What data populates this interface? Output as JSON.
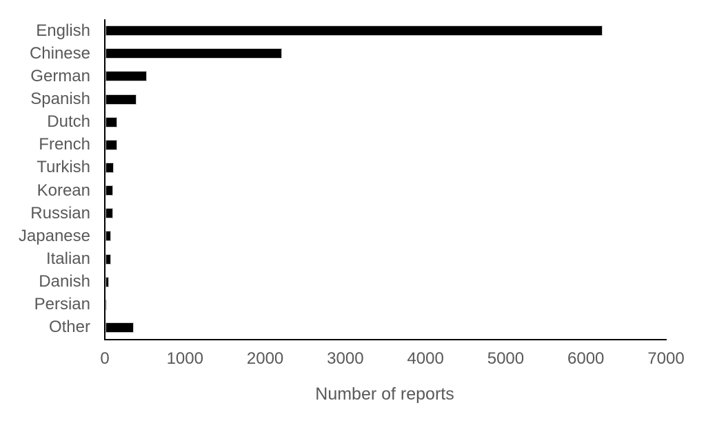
{
  "chart_data": {
    "type": "bar",
    "orientation": "horizontal",
    "title": "",
    "xlabel": "Number of reports",
    "ylabel": "",
    "categories": [
      "English",
      "Chinese",
      "German",
      "Spanish",
      "Dutch",
      "French",
      "Turkish",
      "Korean",
      "Russian",
      "Japanese",
      "Italian",
      "Danish",
      "Persian",
      "Other"
    ],
    "values": [
      6200,
      2200,
      520,
      390,
      150,
      150,
      105,
      95,
      95,
      70,
      65,
      45,
      15,
      350
    ],
    "xlim": [
      0,
      7000
    ],
    "xticks": [
      0,
      1000,
      2000,
      3000,
      4000,
      5000,
      6000,
      7000
    ],
    "grid": false,
    "legend": false,
    "bar_color": "#000000",
    "text_color": "#595959",
    "axis_color": "#000000",
    "background_color": "#ffffff"
  }
}
